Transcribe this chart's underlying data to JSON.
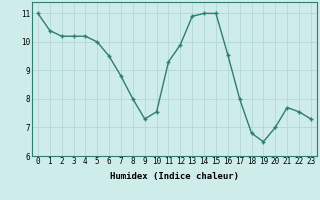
{
  "x": [
    0,
    1,
    2,
    3,
    4,
    5,
    6,
    7,
    8,
    9,
    10,
    11,
    12,
    13,
    14,
    15,
    16,
    17,
    18,
    19,
    20,
    21,
    22,
    23
  ],
  "y": [
    11.0,
    10.4,
    10.2,
    10.2,
    10.2,
    10.0,
    9.5,
    8.8,
    8.0,
    7.3,
    7.55,
    9.3,
    9.9,
    10.9,
    11.0,
    11.0,
    9.55,
    8.0,
    6.8,
    6.5,
    7.0,
    7.7,
    7.55,
    7.3
  ],
  "line_color": "#2e7d6e",
  "marker": "+",
  "marker_size": 3.5,
  "bg_color": "#ceecea",
  "grid_color": "#aed4cf",
  "xlabel": "Humidex (Indice chaleur)",
  "xlim": [
    -0.5,
    23.5
  ],
  "ylim": [
    6,
    11.4
  ],
  "xticks": [
    0,
    1,
    2,
    3,
    4,
    5,
    6,
    7,
    8,
    9,
    10,
    11,
    12,
    13,
    14,
    15,
    16,
    17,
    18,
    19,
    20,
    21,
    22,
    23
  ],
  "yticks": [
    6,
    7,
    8,
    9,
    10,
    11
  ],
  "tick_fontsize": 5.5,
  "xlabel_fontsize": 6.5,
  "linewidth": 1.0,
  "marker_linewidth": 1.0
}
